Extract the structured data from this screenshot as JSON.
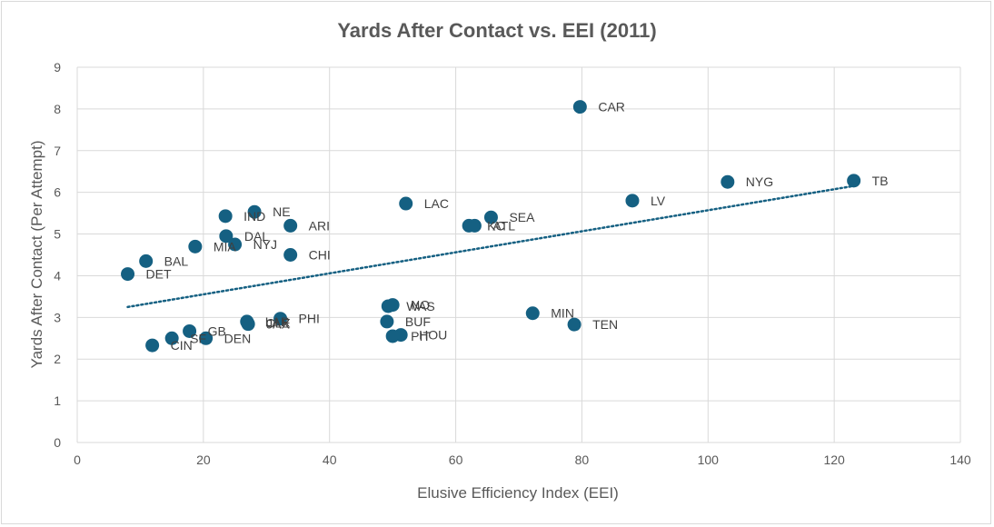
{
  "chart_data": {
    "type": "scatter",
    "title": "Yards After Contact vs. EEI (2011)",
    "xlabel": "Elusive Efficiency Index (EEI)",
    "ylabel": "Yards After Contact (Per Attempt)",
    "xlim": [
      0,
      140
    ],
    "ylim": [
      0,
      9
    ],
    "xticks": [
      0,
      20,
      40,
      60,
      80,
      100,
      120,
      140
    ],
    "yticks": [
      0,
      1,
      2,
      3,
      4,
      5,
      6,
      7,
      8,
      9
    ],
    "grid": true,
    "legend": "none",
    "marker_color": "#156082",
    "trendline": {
      "type": "linear",
      "style": "dotted",
      "color": "#156082",
      "x": [
        8,
        123
      ],
      "y": [
        3.25,
        6.15
      ]
    },
    "points": [
      {
        "label": "CAR",
        "x": 79.7,
        "y": 8.05
      },
      {
        "label": "TB",
        "x": 123.1,
        "y": 6.28
      },
      {
        "label": "NYG",
        "x": 103.1,
        "y": 6.25
      },
      {
        "label": "LV",
        "x": 88.0,
        "y": 5.8
      },
      {
        "label": "LAC",
        "x": 52.1,
        "y": 5.73
      },
      {
        "label": "NE",
        "x": 28.1,
        "y": 5.53
      },
      {
        "label": "IND",
        "x": 23.5,
        "y": 5.43
      },
      {
        "label": "SEA",
        "x": 65.6,
        "y": 5.4
      },
      {
        "label": "ARI",
        "x": 33.8,
        "y": 5.2
      },
      {
        "label": "KC",
        "x": 62.1,
        "y": 5.2
      },
      {
        "label": "ATL",
        "x": 63.0,
        "y": 5.2
      },
      {
        "label": "DAL",
        "x": 23.6,
        "y": 4.95
      },
      {
        "label": "NYJ",
        "x": 25.0,
        "y": 4.75
      },
      {
        "label": "MIA",
        "x": 18.7,
        "y": 4.7
      },
      {
        "label": "CHI",
        "x": 33.8,
        "y": 4.5
      },
      {
        "label": "BAL",
        "x": 10.9,
        "y": 4.35
      },
      {
        "label": "DET",
        "x": 8.0,
        "y": 4.04
      },
      {
        "label": "NO",
        "x": 50.0,
        "y": 3.3
      },
      {
        "label": "WAS",
        "x": 49.3,
        "y": 3.27
      },
      {
        "label": "MIN",
        "x": 72.2,
        "y": 3.1
      },
      {
        "label": "PHI",
        "x": 32.2,
        "y": 2.97
      },
      {
        "label": "LAR",
        "x": 26.9,
        "y": 2.9
      },
      {
        "label": "CLE",
        "x": 27.0,
        "y": 2.87
      },
      {
        "label": "JAX",
        "x": 27.1,
        "y": 2.84
      },
      {
        "label": "BUF",
        "x": 49.1,
        "y": 2.9
      },
      {
        "label": "TEN",
        "x": 78.8,
        "y": 2.83
      },
      {
        "label": "GB",
        "x": 17.8,
        "y": 2.67
      },
      {
        "label": "HOU",
        "x": 51.3,
        "y": 2.58
      },
      {
        "label": "PIT",
        "x": 50.0,
        "y": 2.55
      },
      {
        "label": "SF",
        "x": 15.0,
        "y": 2.5
      },
      {
        "label": "DEN",
        "x": 20.4,
        "y": 2.5
      },
      {
        "label": "CIN",
        "x": 11.9,
        "y": 2.33
      }
    ]
  }
}
